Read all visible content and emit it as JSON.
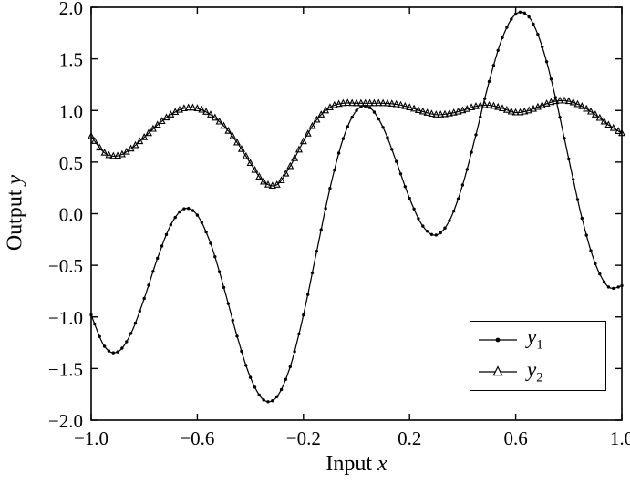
{
  "figure": {
    "xlabel_prefix": "Input ",
    "xlabel_var": "x",
    "ylabel_prefix": "Output ",
    "ylabel_var": "y",
    "x_ticks": [
      "−1.0",
      "−0.6",
      "−0.2",
      "0.2",
      "0.6",
      "1.0"
    ],
    "y_ticks": [
      "−2.0",
      "−1.5",
      "−1.0",
      "−0.5",
      "0.0",
      "0.5",
      "1.0",
      "1.5",
      "2.0"
    ],
    "legend": [
      {
        "label": "y",
        "sub": "1",
        "marker": "dot"
      },
      {
        "label": "y",
        "sub": "2",
        "marker": "open-triangle"
      }
    ],
    "colors": {
      "line": "#000000",
      "background": "#ffffff"
    }
  },
  "chart_data": {
    "type": "line",
    "title": "",
    "xlabel": "Input x",
    "ylabel": "Output y",
    "xlim": [
      -1,
      1
    ],
    "ylim": [
      -2,
      2
    ],
    "grid": false,
    "legend_position": "lower right",
    "x": [
      -1.0,
      -0.95,
      -0.9,
      -0.85,
      -0.8,
      -0.75,
      -0.7,
      -0.65,
      -0.6,
      -0.55,
      -0.5,
      -0.45,
      -0.4,
      -0.35,
      -0.3,
      -0.25,
      -0.2,
      -0.15,
      -0.1,
      -0.05,
      0.0,
      0.05,
      0.1,
      0.15,
      0.2,
      0.25,
      0.3,
      0.35,
      0.4,
      0.45,
      0.5,
      0.55,
      0.6,
      0.65,
      0.7,
      0.75,
      0.8,
      0.85,
      0.9,
      0.95,
      1.0
    ],
    "series": [
      {
        "name": "y1",
        "marker": "dot",
        "values": [
          -0.98,
          -1.285,
          -1.339,
          -1.16,
          -0.821,
          -0.432,
          -0.109,
          0.048,
          -0.014,
          -0.288,
          -0.714,
          -1.187,
          -1.586,
          -1.804,
          -1.773,
          -1.483,
          -0.981,
          -0.364,
          0.245,
          0.728,
          1.0,
          1.027,
          0.836,
          0.506,
          0.149,
          -0.12,
          -0.207,
          -0.069,
          0.278,
          0.765,
          1.281,
          1.706,
          1.934,
          1.906,
          1.617,
          1.125,
          0.53,
          -0.044,
          -0.484,
          -0.71,
          -0.698
        ]
      },
      {
        "name": "y2",
        "marker": "open-triangle",
        "values": [
          0.75,
          0.59,
          0.56,
          0.63,
          0.74,
          0.86,
          0.96,
          1.02,
          1.02,
          0.96,
          0.85,
          0.69,
          0.49,
          0.31,
          0.28,
          0.46,
          0.7,
          0.91,
          1.03,
          1.07,
          1.07,
          1.07,
          1.07,
          1.06,
          1.03,
          0.99,
          0.96,
          0.97,
          1.0,
          1.04,
          1.05,
          1.02,
          0.98,
          1.0,
          1.05,
          1.09,
          1.09,
          1.04,
          0.96,
          0.86,
          0.78
        ]
      }
    ]
  }
}
